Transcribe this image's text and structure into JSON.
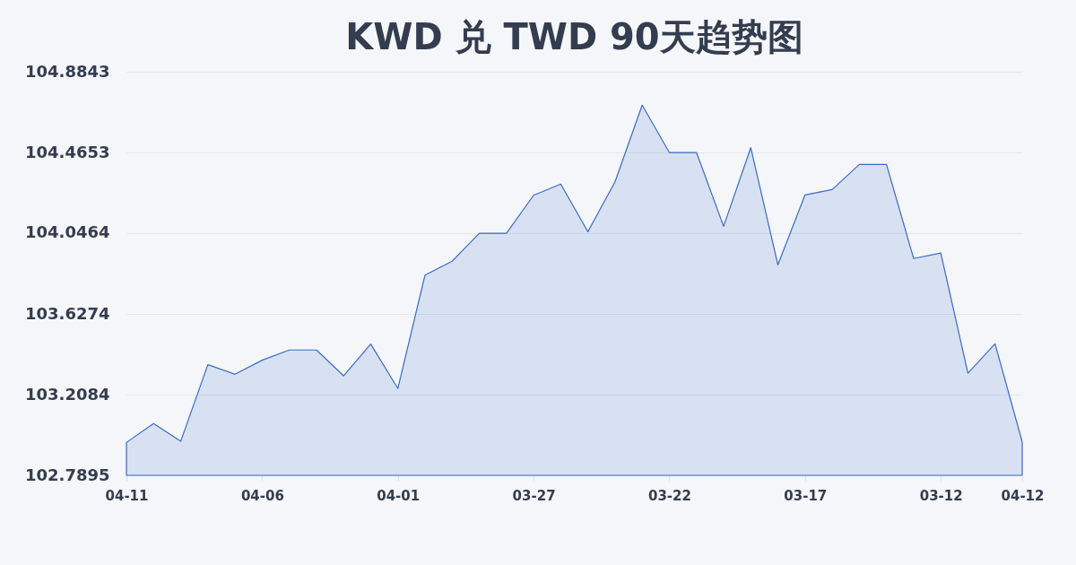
{
  "chart_data": {
    "type": "area",
    "title": "KWD 兑 TWD 90天趋势图",
    "categories": [
      "04-11",
      null,
      null,
      null,
      null,
      "04-06",
      null,
      null,
      null,
      null,
      "04-01",
      null,
      null,
      null,
      null,
      "03-27",
      null,
      null,
      null,
      null,
      "03-22",
      null,
      null,
      null,
      null,
      "03-17",
      null,
      null,
      null,
      null,
      "03-12",
      null,
      null,
      "04-12"
    ],
    "values": [
      102.96,
      103.058,
      102.966,
      103.364,
      103.314,
      103.387,
      103.44,
      103.44,
      103.306,
      103.471,
      103.24,
      103.829,
      103.901,
      104.046,
      104.046,
      104.243,
      104.301,
      104.054,
      104.313,
      104.711,
      104.465,
      104.465,
      104.082,
      104.49,
      103.882,
      104.245,
      104.273,
      104.403,
      104.403,
      103.915,
      103.943,
      103.32,
      103.472,
      102.963
    ],
    "color": "#3a6ac8",
    "ylim": [
      102.7895,
      104.8843
    ],
    "yticks": [
      102.7895,
      103.2084,
      103.6274,
      104.0464,
      104.4653,
      104.8843
    ],
    "grid": "y"
  }
}
